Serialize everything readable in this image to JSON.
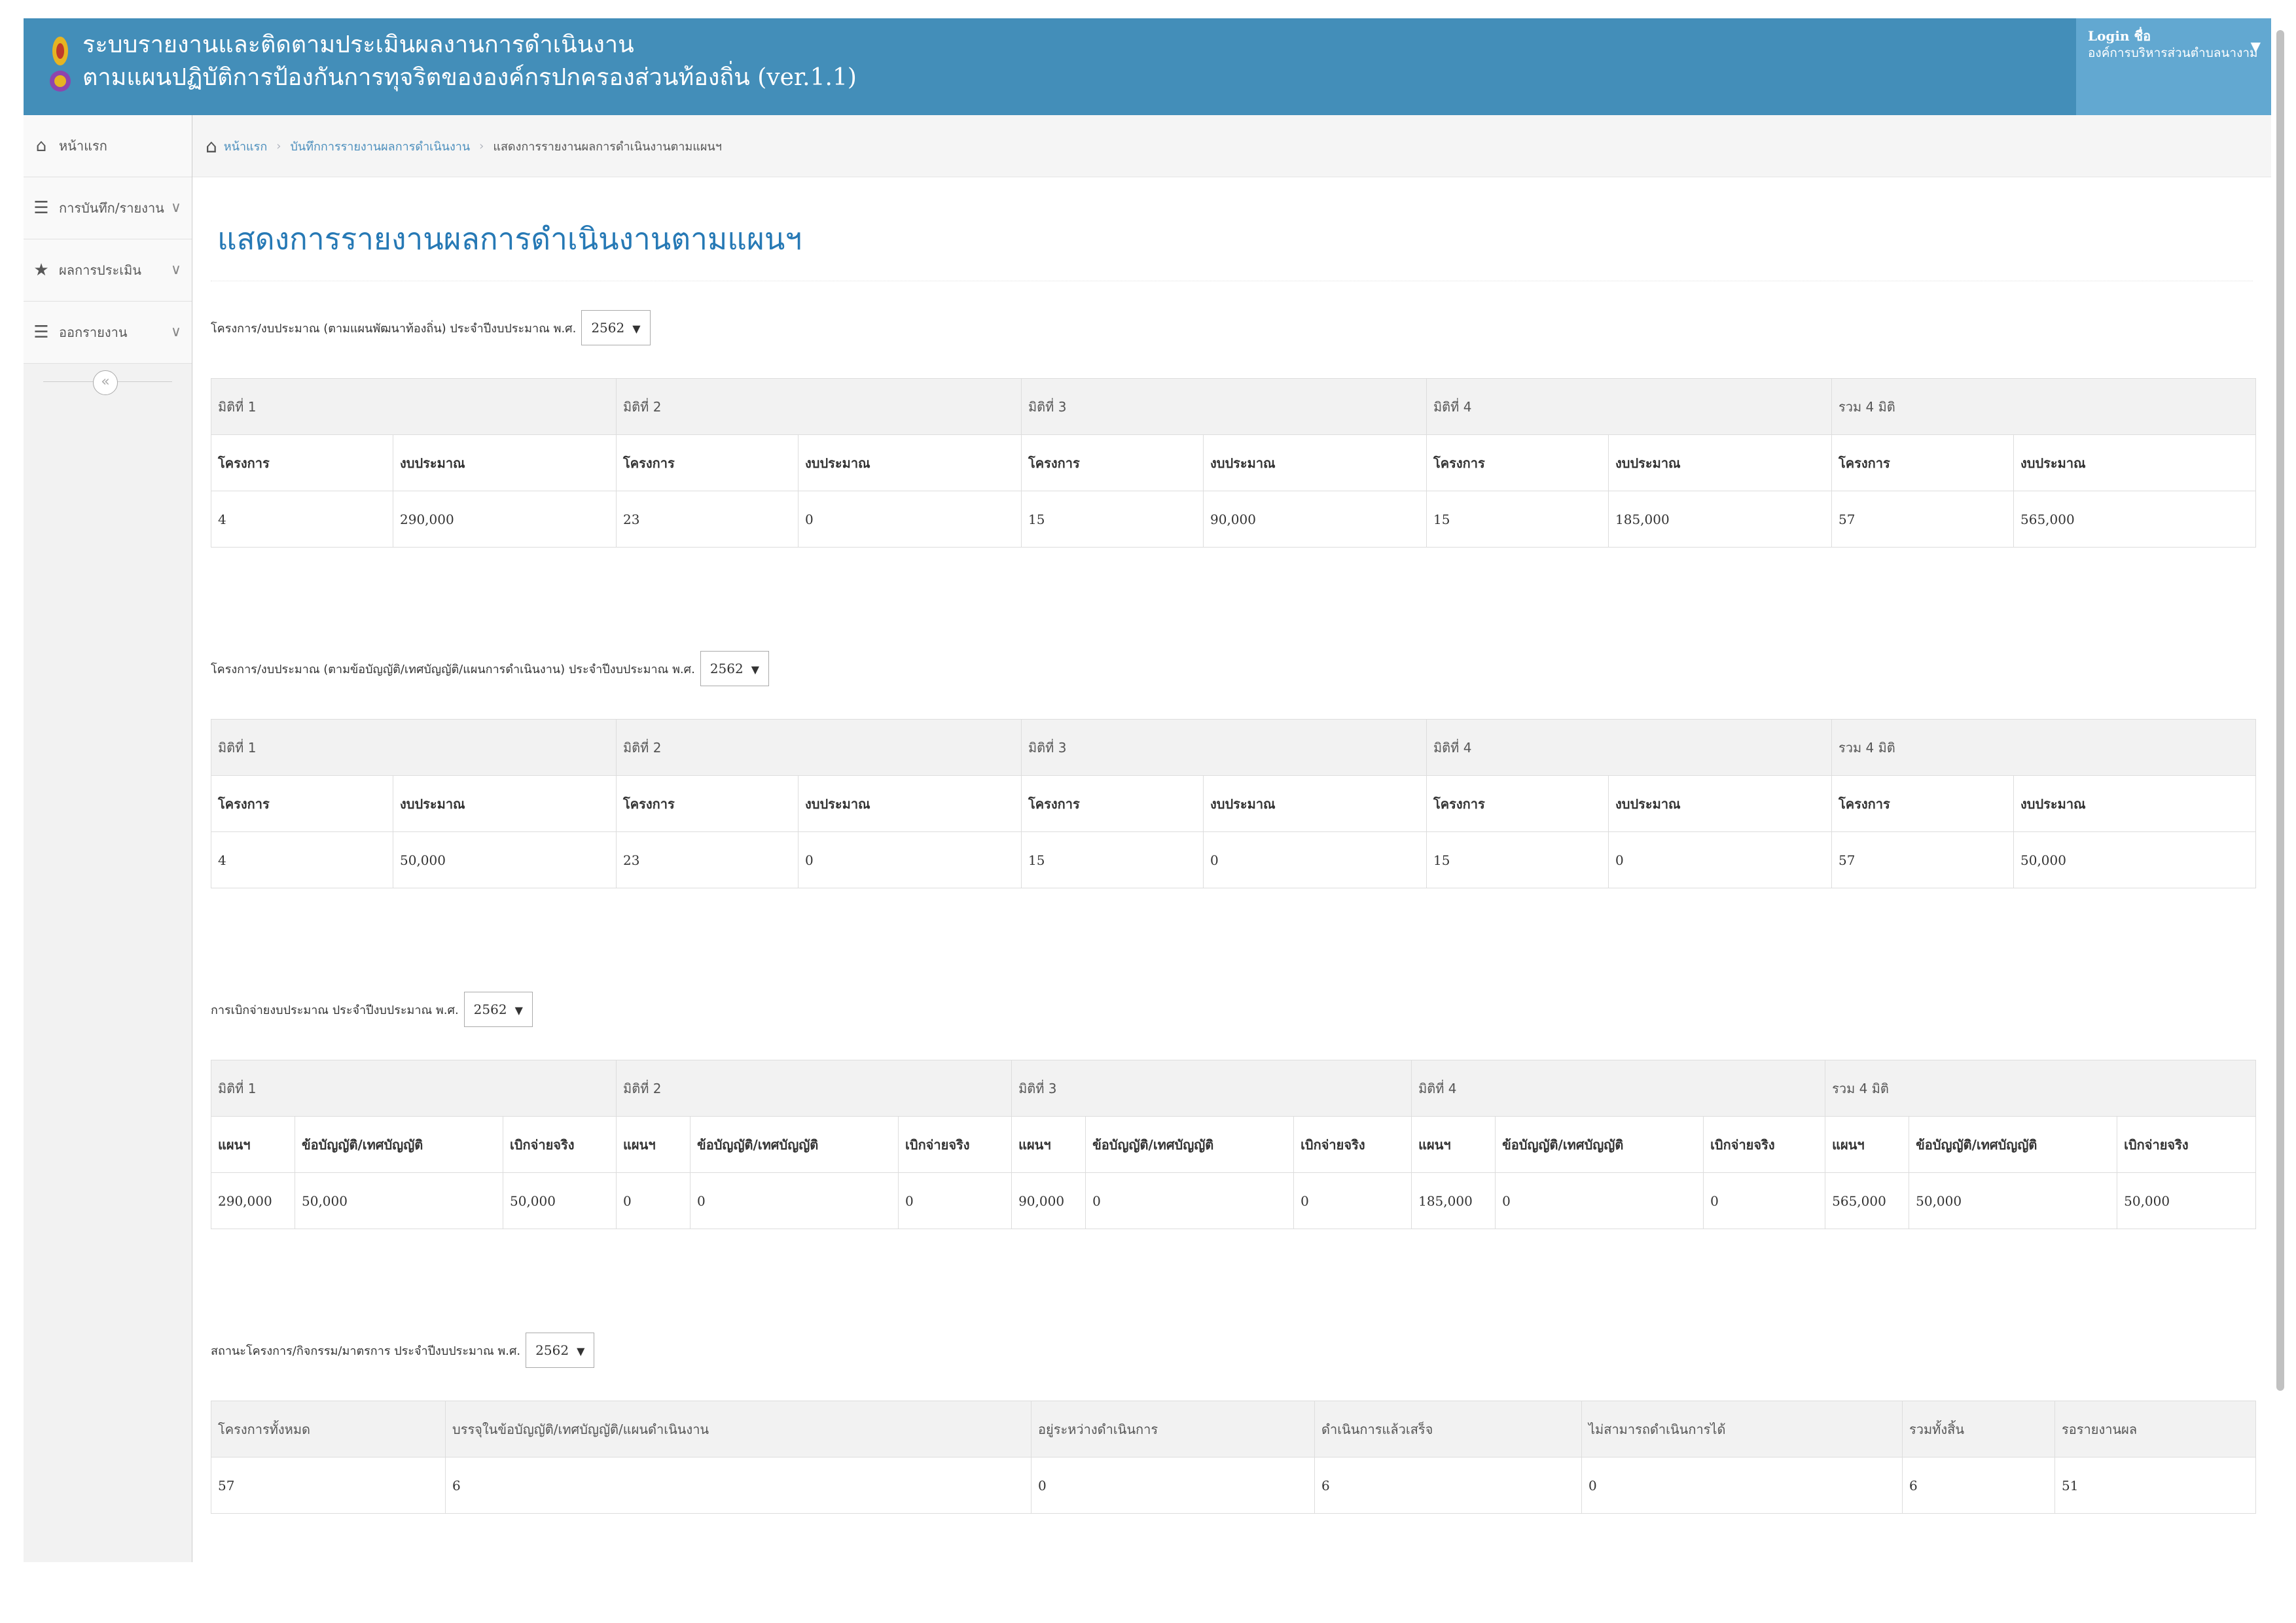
{
  "header": {
    "title_line1": "ระบบรายงานและติดตามประเมินผลงานการดำเนินงาน",
    "title_line2": "ตามแผนปฏิบัติการป้องกันการทุจริตขององค์กรปกครองส่วนท้องถิ่น (ver.1.1)",
    "user_name": "Login ชื่อ",
    "user_org": "องค์การบริหารส่วนตำบลนางาม"
  },
  "sidebar": {
    "items": [
      {
        "label": "หน้าแรก",
        "icon": "home-icon"
      },
      {
        "label": "การบันทึก/รายงาน",
        "icon": "list-icon"
      },
      {
        "label": "ผลการประเมิน",
        "icon": "star-icon"
      },
      {
        "label": "ออกรายงาน",
        "icon": "list-icon"
      }
    ]
  },
  "breadcrumb": {
    "home": "หน้าแรก",
    "level2": "บันทึกการรายงานผลการดำเนินงาน",
    "current": "แสดงการรายงานผลการดำเนินงานตามแผนฯ"
  },
  "page_title": "แสดงการรายงานผลการดำเนินงานตามแผนฯ",
  "section1": {
    "label": "โครงการ/งบประมาณ (ตามแผนพัฒนาท้องถิ่น) ประจำปีงบประมาณ พ.ศ.",
    "year": "2562",
    "groups": [
      "มิติที่ 1",
      "มิติที่ 2",
      "มิติที่ 3",
      "มิติที่ 4",
      "รวม 4 มิติ"
    ],
    "headers": [
      "โครงการ",
      "งบประมาณ",
      "โครงการ",
      "งบประมาณ",
      "โครงการ",
      "งบประมาณ",
      "โครงการ",
      "งบประมาณ",
      "โครงการ",
      "งบประมาณ"
    ],
    "values": [
      "4",
      "290,000",
      "23",
      "0",
      "15",
      "90,000",
      "15",
      "185,000",
      "57",
      "565,000"
    ]
  },
  "section2": {
    "label": "โครงการ/งบประมาณ (ตามข้อบัญญัติ/เทศบัญญัติ/แผนการดำเนินงาน) ประจำปีงบประมาณ พ.ศ.",
    "year": "2562",
    "groups": [
      "มิติที่ 1",
      "มิติที่ 2",
      "มิติที่ 3",
      "มิติที่ 4",
      "รวม 4 มิติ"
    ],
    "headers": [
      "โครงการ",
      "งบประมาณ",
      "โครงการ",
      "งบประมาณ",
      "โครงการ",
      "งบประมาณ",
      "โครงการ",
      "งบประมาณ",
      "โครงการ",
      "งบประมาณ"
    ],
    "values": [
      "4",
      "50,000",
      "23",
      "0",
      "15",
      "0",
      "15",
      "0",
      "57",
      "50,000"
    ]
  },
  "section3": {
    "label": "การเบิกจ่ายงบประมาณ ประจำปีงบประมาณ พ.ศ.",
    "year": "2562",
    "groups": [
      "มิติที่ 1",
      "มิติที่ 2",
      "มิติที่ 3",
      "มิติที่ 4",
      "รวม 4 มิติ"
    ],
    "headers": [
      "แผนฯ",
      "ข้อบัญญัติ/เทศบัญญัติ",
      "เบิกจ่ายจริง",
      "แผนฯ",
      "ข้อบัญญัติ/เทศบัญญัติ",
      "เบิกจ่ายจริง",
      "แผนฯ",
      "ข้อบัญญัติ/เทศบัญญัติ",
      "เบิกจ่ายจริง",
      "แผนฯ",
      "ข้อบัญญัติ/เทศบัญญัติ",
      "เบิกจ่ายจริง",
      "แผนฯ",
      "ข้อบัญญัติ/เทศบัญญัติ",
      "เบิกจ่ายจริง"
    ],
    "values": [
      "290,000",
      "50,000",
      "50,000",
      "0",
      "0",
      "0",
      "90,000",
      "0",
      "0",
      "185,000",
      "0",
      "0",
      "565,000",
      "50,000",
      "50,000"
    ]
  },
  "section4": {
    "label": "สถานะโครงการ/กิจกรรม/มาตรการ ประจำปีงบประมาณ พ.ศ.",
    "year": "2562",
    "headers": [
      "โครงการทั้งหมด",
      "บรรจุในข้อบัญญัติ/เทศบัญญัติ/แผนดำเนินงาน",
      "อยู่ระหว่างดำเนินการ",
      "ดำเนินการแล้วเสร็จ",
      "ไม่สามารถดำเนินการได้",
      "รวมทั้งสิ้น",
      "รอรายงานผล"
    ],
    "values": [
      "57",
      "6",
      "0",
      "6",
      "0",
      "6",
      "51"
    ]
  }
}
